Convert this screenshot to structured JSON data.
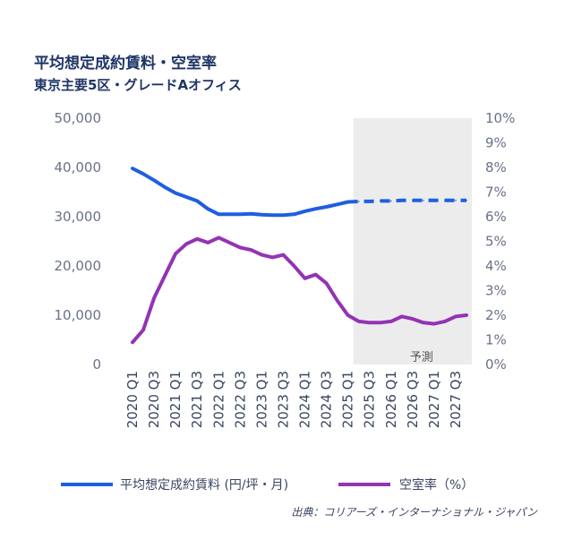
{
  "chart_data": {
    "type": "line",
    "title": "平均想定成約賃料・空室率",
    "subtitle": "東京主要5区・グレードAオフィス",
    "categories": [
      "2020 Q1",
      "2020 Q2",
      "2020 Q3",
      "2020 Q4",
      "2021 Q1",
      "2021 Q2",
      "2021 Q3",
      "2021 Q4",
      "2022 Q1",
      "2022 Q2",
      "2022 Q3",
      "2022 Q4",
      "2023 Q1",
      "2023 Q2",
      "2023 Q3",
      "2023 Q4",
      "2024 Q1",
      "2024 Q2",
      "2024 Q3",
      "2024 Q4",
      "2025 Q1",
      "2025 Q2",
      "2025 Q3",
      "2025 Q4",
      "2026 Q1",
      "2026 Q2",
      "2026 Q3",
      "2026 Q4",
      "2027 Q1",
      "2027 Q2",
      "2027 Q3",
      "2027 Q4"
    ],
    "x_tick_labels": [
      "2020 Q1",
      "2020 Q3",
      "2021 Q1",
      "2021 Q3",
      "2022 Q1",
      "2022 Q3",
      "2023 Q1",
      "2023 Q3",
      "2024 Q1",
      "2024 Q3",
      "2025 Q1",
      "2025 Q3",
      "2026 Q1",
      "2026 Q3",
      "2027 Q1",
      "2027 Q3"
    ],
    "forecast_start": "2025 Q2",
    "forecast_label": "予測",
    "y_left": {
      "ylim": [
        0,
        50000
      ],
      "ticks": [
        "0",
        "10,000",
        "20,000",
        "30,000",
        "40,000",
        "50,000"
      ]
    },
    "y_right": {
      "ylim": [
        0,
        10
      ],
      "ticks": [
        "0%",
        "1%",
        "2%",
        "3%",
        "4%",
        "5%",
        "6%",
        "7%",
        "8%",
        "9%",
        "10%"
      ]
    },
    "grid": false,
    "legend_placement": "bottom",
    "series": [
      {
        "name": "平均想定成約賃料 (円/坪・月)",
        "axis": "left",
        "color": "#1f5ee0",
        "values": [
          39800,
          38700,
          37400,
          36000,
          34800,
          34000,
          33200,
          31600,
          30500,
          30500,
          30500,
          30600,
          30400,
          30300,
          30300,
          30500,
          31100,
          31600,
          32000,
          32500,
          33000,
          33100,
          33100,
          33200,
          33200,
          33300,
          33300,
          33300,
          33300,
          33300,
          33300,
          33300
        ]
      },
      {
        "name": "空室率（%）",
        "axis": "right",
        "color": "#9333b5",
        "values": [
          0.9,
          1.4,
          2.7,
          3.6,
          4.5,
          4.9,
          5.1,
          4.95,
          5.15,
          4.95,
          4.75,
          4.65,
          4.45,
          4.35,
          4.45,
          4.0,
          3.5,
          3.65,
          3.3,
          2.6,
          2.0,
          1.75,
          1.7,
          1.7,
          1.75,
          1.95,
          1.85,
          1.7,
          1.65,
          1.75,
          1.95,
          2.0
        ]
      }
    ]
  },
  "legend": [
    {
      "label": "平均想定成約賃料 (円/坪・月)",
      "color": "#1f5ee0"
    },
    {
      "label": "空室率（%）",
      "color": "#9333b5"
    }
  ],
  "source": "出典：コリアーズ・インターナショナル・ジャパン"
}
